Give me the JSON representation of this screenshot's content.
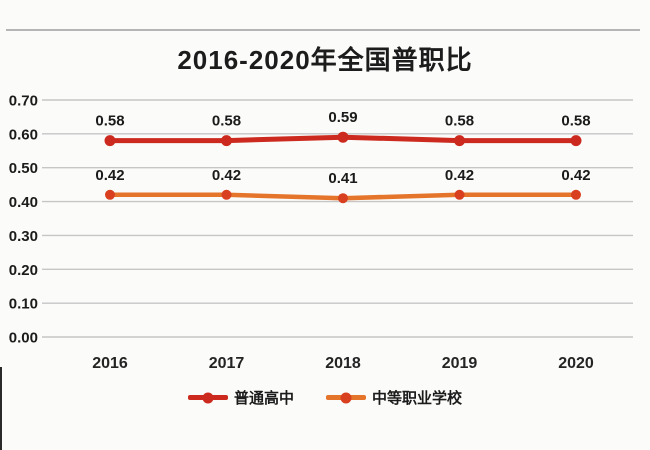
{
  "chart_data": {
    "type": "line",
    "title": "2016-2020年全国普职比",
    "categories": [
      "2016",
      "2017",
      "2018",
      "2019",
      "2020"
    ],
    "series": [
      {
        "name": "普通高中",
        "values": [
          0.58,
          0.58,
          0.59,
          0.58,
          0.58
        ],
        "color": "#cc2a1e",
        "marker_color": "#cc2a1e"
      },
      {
        "name": "中等职业学校",
        "values": [
          0.42,
          0.42,
          0.41,
          0.42,
          0.42
        ],
        "color": "#e5752b",
        "marker_color": "#d8401f"
      }
    ],
    "xlabel": "",
    "ylabel": "",
    "ylim": [
      0.0,
      0.7
    ],
    "ytick_labels": [
      "0.70",
      "0.60",
      "0.50",
      "0.40",
      "0.30",
      "0.20",
      "0.10",
      "0.00"
    ],
    "grid": true,
    "show_data_labels": true,
    "legend_position": "bottom",
    "colors": {
      "gridline": "#c6c6c6",
      "text": "#1b1b1b",
      "background": "#fbfbf9",
      "divider": "#b5b5b5"
    }
  }
}
